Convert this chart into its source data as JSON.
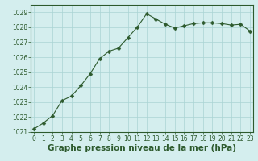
{
  "x": [
    0,
    1,
    2,
    3,
    4,
    5,
    6,
    7,
    8,
    9,
    10,
    11,
    12,
    13,
    14,
    15,
    16,
    17,
    18,
    19,
    20,
    21,
    22,
    23
  ],
  "y": [
    1021.2,
    1021.6,
    1022.1,
    1023.1,
    1023.4,
    1024.1,
    1024.9,
    1025.9,
    1026.4,
    1026.6,
    1027.3,
    1028.0,
    1028.9,
    1028.55,
    1028.2,
    1027.95,
    1028.1,
    1028.25,
    1028.3,
    1028.3,
    1028.25,
    1028.15,
    1028.2,
    1027.75
  ],
  "line_color": "#2d5a2d",
  "marker": "D",
  "marker_size": 2.5,
  "bg_color": "#d4eeee",
  "grid_color": "#aad4d4",
  "xlabel": "Graphe pression niveau de la mer (hPa)",
  "xlabel_fontsize": 7.5,
  "ylim": [
    1021,
    1029.5
  ],
  "yticks": [
    1021,
    1022,
    1023,
    1024,
    1025,
    1026,
    1027,
    1028,
    1029
  ],
  "xticks": [
    0,
    1,
    2,
    3,
    4,
    5,
    6,
    7,
    8,
    9,
    10,
    11,
    12,
    13,
    14,
    15,
    16,
    17,
    18,
    19,
    20,
    21,
    22,
    23
  ],
  "tick_fontsize": 5.5,
  "border_color": "#2d5a2d",
  "xlim": [
    -0.3,
    23.3
  ]
}
